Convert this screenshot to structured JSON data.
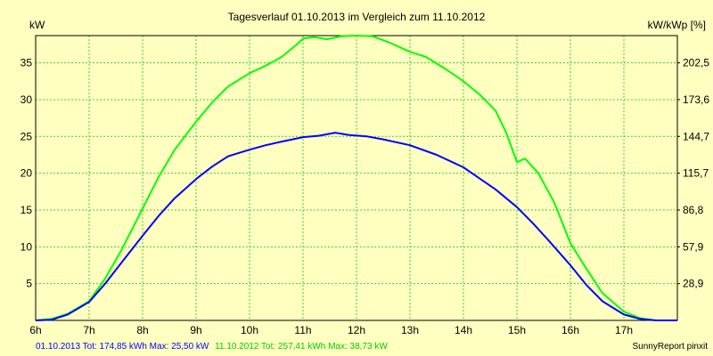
{
  "chart_data": {
    "type": "line",
    "title": "Tagesverlauf 01.10.2013 im Vergleich zum 11.10.2012",
    "ylabel_left": "kW",
    "ylabel_right": "kW/kWp [%]",
    "xlim": [
      6.0,
      18.0
    ],
    "ylim": [
      0,
      38.7
    ],
    "grid": true,
    "x_ticks": [
      6,
      7,
      8,
      9,
      10,
      11,
      12,
      13,
      14,
      15,
      16,
      17
    ],
    "x_tick_labels": [
      "6h",
      "7h",
      "8h",
      "9h",
      "10h",
      "11h",
      "12h",
      "13h",
      "14h",
      "15h",
      "16h",
      "17h"
    ],
    "y_ticks": [
      5,
      10,
      15,
      20,
      25,
      30,
      35
    ],
    "y_tick_labels": [
      "5",
      "10",
      "15",
      "20",
      "25",
      "30",
      "35"
    ],
    "y2_tick_labels": [
      "28,9",
      "57,9",
      "86,8",
      "115,7",
      "144,7",
      "173,6",
      "202,5"
    ],
    "colors": {
      "background": "#ffffc0",
      "grid": "#3ccf3c",
      "series_2013": "#0000ff",
      "series_2012": "#00ff00",
      "footer_2013": "#0000ff",
      "footer_2012": "#00cc00"
    },
    "series": [
      {
        "name": "01.10.2013",
        "color": "#0000ff",
        "x": [
          6.0,
          6.3,
          6.6,
          7.0,
          7.3,
          7.6,
          8.0,
          8.3,
          8.6,
          9.0,
          9.3,
          9.6,
          10.0,
          10.3,
          10.6,
          11.0,
          11.3,
          11.6,
          11.85,
          12.2,
          12.5,
          13.0,
          13.5,
          14.0,
          14.3,
          14.6,
          15.0,
          15.3,
          15.6,
          16.0,
          16.3,
          16.6,
          17.0,
          17.3,
          17.6,
          17.8,
          18.0
        ],
        "values": [
          0.0,
          0.1,
          0.8,
          2.5,
          5.0,
          7.8,
          11.5,
          14.2,
          16.6,
          19.2,
          20.9,
          22.3,
          23.2,
          23.8,
          24.3,
          24.9,
          25.1,
          25.5,
          25.2,
          25.0,
          24.6,
          23.8,
          22.5,
          20.8,
          19.3,
          17.8,
          15.4,
          13.2,
          10.8,
          7.5,
          4.8,
          2.6,
          0.8,
          0.2,
          0.0,
          0.0,
          0.0
        ]
      },
      {
        "name": "11.10.2012",
        "color": "#00ff00",
        "x": [
          6.0,
          6.3,
          6.6,
          7.0,
          7.3,
          7.6,
          8.0,
          8.3,
          8.6,
          9.0,
          9.3,
          9.6,
          10.0,
          10.3,
          10.6,
          10.9,
          11.0,
          11.2,
          11.45,
          11.7,
          12.0,
          12.3,
          12.6,
          13.0,
          13.3,
          13.7,
          14.0,
          14.3,
          14.6,
          14.8,
          15.0,
          15.15,
          15.4,
          15.7,
          16.0,
          16.3,
          16.6,
          17.0,
          17.3,
          17.6,
          17.8,
          18.0
        ],
        "values": [
          0.0,
          0.2,
          0.9,
          2.6,
          5.7,
          9.5,
          15.2,
          19.5,
          23.2,
          27.0,
          29.6,
          31.8,
          33.6,
          34.6,
          35.8,
          37.6,
          38.3,
          38.5,
          38.2,
          38.6,
          38.7,
          38.6,
          37.8,
          36.5,
          35.8,
          34.0,
          32.5,
          30.7,
          28.5,
          25.5,
          21.5,
          22.0,
          20.0,
          16.0,
          10.5,
          7.0,
          3.7,
          1.2,
          0.3,
          0.0,
          0.0,
          0.0
        ]
      }
    ]
  },
  "footer": {
    "summary_2013": "01.10.2013 Tot: 174,85 kWh Max: 25,50 kW",
    "summary_2012": "11.10.2012 Tot: 257,41 kWh Max: 38,73 kW",
    "brand": "SunnyReport pinxit"
  }
}
